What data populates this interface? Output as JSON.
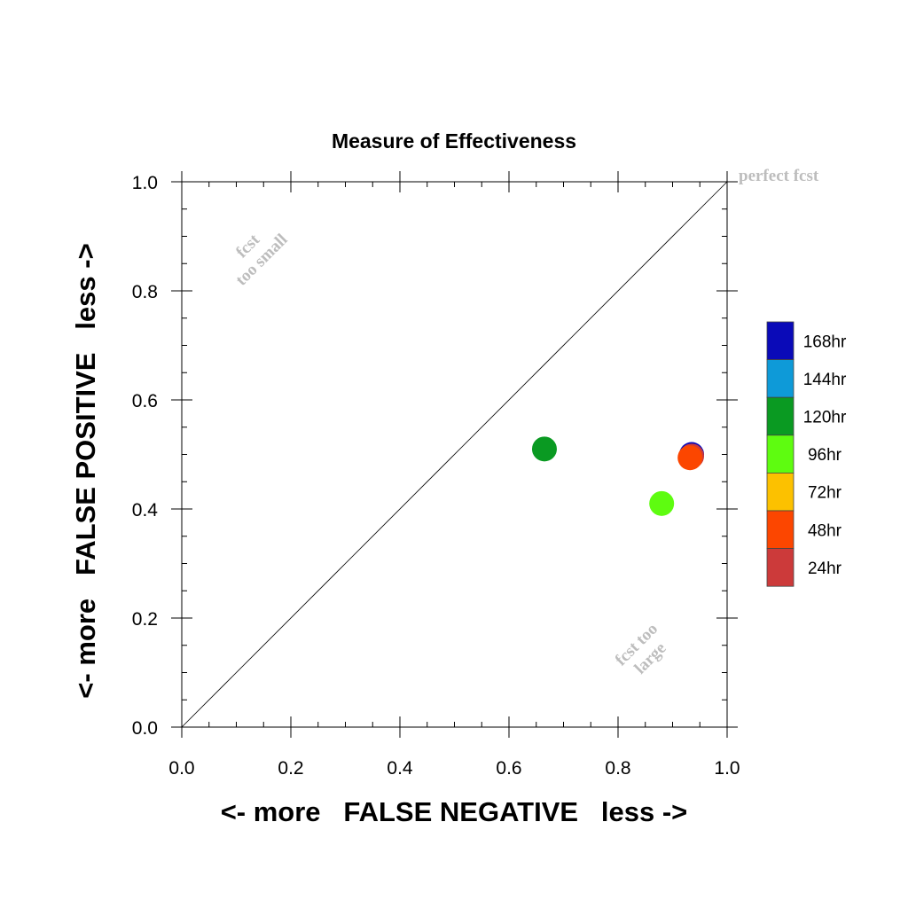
{
  "chart_data": {
    "type": "scatter",
    "title": "Measure of Effectiveness",
    "xlabel": "<- more   FALSE NEGATIVE   less ->",
    "ylabel": "<- more   FALSE POSITIVE   less ->",
    "xlim": [
      0.0,
      1.0
    ],
    "ylim": [
      0.0,
      1.0
    ],
    "xticks": [
      "0.0",
      "0.2",
      "0.4",
      "0.6",
      "0.8",
      "1.0"
    ],
    "yticks": [
      "0.0",
      "0.2",
      "0.4",
      "0.6",
      "0.8",
      "1.0"
    ],
    "grid": false,
    "diagonal_line": true,
    "annotations": {
      "perfect": "perfect fcst",
      "too_small_1": "fcst",
      "too_small_2": "too small",
      "too_large_1": "fcst too",
      "too_large_2": "large"
    },
    "legend": {
      "position": "right",
      "entries": [
        {
          "label": "168hr",
          "color": "#0a0ab8"
        },
        {
          "label": "144hr",
          "color": "#0e9ad8"
        },
        {
          "label": "120hr",
          "color": "#0a9a22"
        },
        {
          "label": "96hr",
          "color": "#5efc10"
        },
        {
          "label": "72hr",
          "color": "#fcc100"
        },
        {
          "label": "48hr",
          "color": "#fc4600"
        },
        {
          "label": "24hr",
          "color": "#cc3a3a"
        }
      ]
    },
    "points": [
      {
        "lead": "168hr",
        "x": 0.935,
        "y": 0.5,
        "color": "#0a0ab8"
      },
      {
        "lead": "24hr",
        "x": 0.935,
        "y": 0.497,
        "color": "#cc3a3a"
      },
      {
        "lead": "48hr",
        "x": 0.932,
        "y": 0.494,
        "color": "#fc4600"
      },
      {
        "lead": "120hr",
        "x": 0.665,
        "y": 0.51,
        "color": "#0a9a22"
      },
      {
        "lead": "96hr",
        "x": 0.88,
        "y": 0.41,
        "color": "#5efc10"
      }
    ]
  }
}
